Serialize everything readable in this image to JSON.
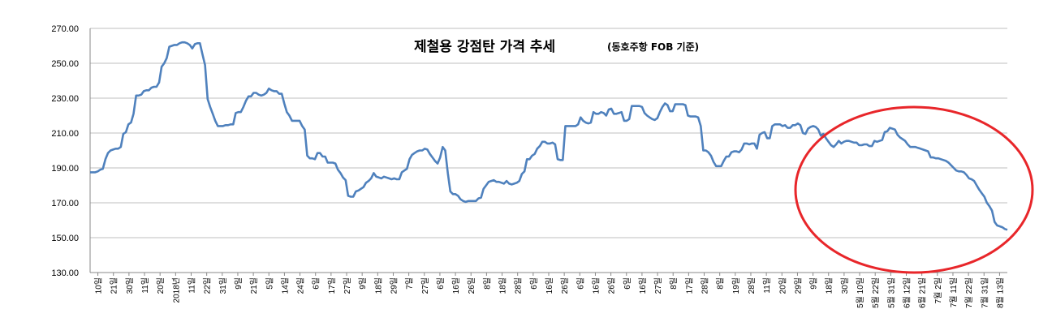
{
  "chart_data": {
    "type": "line",
    "title": "제철용 강점탄 가격 추세",
    "subtitle": "(동호주항 FOB 기준)",
    "xlabel": "",
    "ylabel": "",
    "ylim": [
      130,
      270
    ],
    "yticks": [
      "130.00",
      "150.00",
      "170.00",
      "190.00",
      "210.00",
      "230.00",
      "250.00",
      "270.00"
    ],
    "grid": true,
    "legend": "none",
    "x_tick_labels": [
      "10일",
      "21일",
      "30일",
      "11일",
      "20일",
      "2018년",
      "11일",
      "22일",
      "31일",
      "9일",
      "21일",
      "5일",
      "14일",
      "24일",
      "6일",
      "17일",
      "27일",
      "9일",
      "18일",
      "29일",
      "7일",
      "27일",
      "6일",
      "16일",
      "26일",
      "8일",
      "18일",
      "28일",
      "6일",
      "16일",
      "26일",
      "6일",
      "16일",
      "26일",
      "6일",
      "16일",
      "27일",
      "8일",
      "17일",
      "28일",
      "8일",
      "19일",
      "28일",
      "11일",
      "20일",
      "29일",
      "9일",
      "18일",
      "30일",
      "5월 10일",
      "5월 22일",
      "5월 31일",
      "6월 12일",
      "6월 21일",
      "7월 2일",
      "7월 11일",
      "7월 22일",
      "7월 31일",
      "8월 13일"
    ],
    "annotation": "red-ellipse-highlight-recent-decline",
    "series": [
      {
        "color": "#4f81bd",
        "values": [
          187.5,
          187.5,
          187.5,
          188,
          189,
          189.5,
          195,
          198.5,
          200,
          200.5,
          201,
          201,
          202,
          209.5,
          210.5,
          215,
          216,
          221,
          231.5,
          231.5,
          232,
          234,
          234.5,
          234.5,
          236,
          236.5,
          236.5,
          239,
          248,
          250,
          253,
          259.5,
          260,
          260.5,
          260.5,
          261.5,
          262,
          262,
          261.5,
          260.5,
          258.5,
          261,
          261.5,
          261.5,
          255,
          249,
          229.5,
          225,
          221,
          217,
          214,
          214,
          214,
          214.5,
          214.5,
          215,
          215,
          221.5,
          222,
          222,
          225,
          228.5,
          231,
          231,
          233,
          233,
          232,
          231.5,
          232,
          233,
          235.5,
          234.5,
          234,
          234,
          232.5,
          232.5,
          227,
          222,
          220,
          217,
          217,
          217,
          217,
          214,
          212,
          197,
          195.5,
          195.5,
          195,
          198.5,
          198.5,
          196.5,
          196.5,
          193,
          193,
          193,
          192.5,
          189,
          187,
          184.5,
          183,
          174,
          173.5,
          173.5,
          176.5,
          177,
          178,
          179,
          181.5,
          182.5,
          184,
          187,
          185,
          184.5,
          184,
          185,
          184.5,
          184,
          183.5,
          184,
          183.5,
          183.5,
          187.5,
          188.5,
          189.5,
          195,
          197.5,
          198.5,
          199.5,
          200,
          200,
          201,
          200.5,
          198,
          196,
          194,
          192.5,
          196,
          202,
          200,
          187,
          176.5,
          175,
          175,
          174,
          172,
          171,
          170.5,
          171,
          171,
          171,
          171,
          172.5,
          173,
          178,
          180,
          182,
          182.5,
          183,
          182,
          182,
          181.5,
          181,
          182.5,
          181,
          180.5,
          181,
          181.5,
          182.5,
          186.5,
          188,
          195,
          195,
          197,
          198,
          201,
          202.5,
          205,
          205,
          204,
          204,
          204.5,
          203.5,
          195,
          194.5,
          194.5,
          214,
          214,
          214,
          214,
          214,
          215,
          219,
          217,
          216,
          215.5,
          216,
          222,
          221,
          221,
          222,
          221.5,
          220,
          223.5,
          224,
          221,
          221,
          221.5,
          222,
          217,
          217,
          218,
          225.5,
          225.5,
          225.5,
          225.5,
          225,
          221.5,
          220,
          219,
          218,
          217.5,
          218.5,
          222,
          225,
          227,
          226,
          222.5,
          222.5,
          226.5,
          226.5,
          226.5,
          226.5,
          226,
          220,
          219.5,
          219.5,
          219.5,
          219,
          214,
          200,
          200,
          199,
          197,
          193.5,
          191,
          191,
          191,
          194,
          196.5,
          196.5,
          199,
          199.5,
          199.5,
          199,
          200.5,
          204,
          204,
          203.5,
          204,
          204,
          201,
          209,
          210,
          210.5,
          207,
          207,
          214,
          215,
          215,
          215,
          214,
          214.5,
          213,
          213,
          214.5,
          214.5,
          215.5,
          214.5,
          210,
          209.5,
          212.5,
          213.5,
          214,
          213.5,
          212,
          208.5,
          209.5,
          207,
          205,
          203,
          202,
          203.5,
          205.5,
          204,
          205,
          205.5,
          205.5,
          205,
          204.5,
          204.5,
          203,
          203,
          203.5,
          203.5,
          202.5,
          202.5,
          205.5,
          205,
          205.5,
          206,
          210.5,
          211,
          213,
          212.5,
          212,
          209,
          207.5,
          206.5,
          205.5,
          203.5,
          202,
          202,
          202,
          201.5,
          201,
          200.5,
          200,
          199.5,
          196,
          196,
          195.5,
          195.5,
          195,
          194.5,
          194,
          193,
          191.5,
          190,
          188.5,
          188,
          188,
          187.5,
          186,
          184,
          183.5,
          182.5,
          180,
          177.5,
          175.5,
          173.5,
          170,
          168,
          165.5,
          159,
          157,
          156.5,
          156,
          155,
          154.5
        ]
      }
    ]
  }
}
